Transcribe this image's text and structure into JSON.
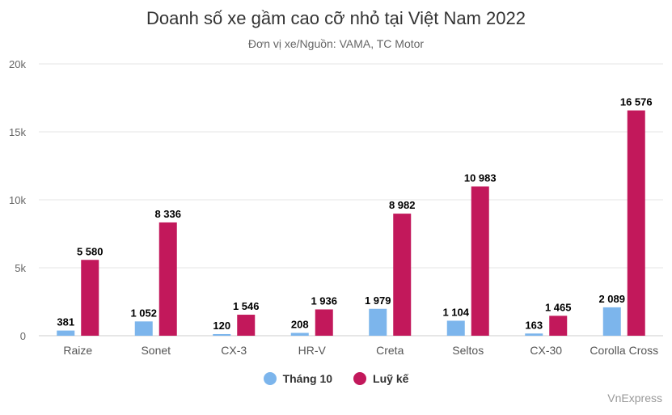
{
  "chart_data": {
    "type": "bar",
    "title": "Doanh số xe gầm cao cỡ nhỏ tại Việt Nam 2022",
    "subtitle": "Đơn vị xe/Nguồn: VAMA, TC Motor",
    "categories": [
      "Raize",
      "Sonet",
      "CX-3",
      "HR-V",
      "Creta",
      "Seltos",
      "CX-30",
      "Corolla Cross"
    ],
    "series": [
      {
        "name": "Tháng 10",
        "color": "#7cb5ec",
        "values": [
          381,
          1052,
          120,
          208,
          1979,
          1104,
          163,
          2089
        ],
        "labels": [
          "381",
          "1 052",
          "120",
          "208",
          "1 979",
          "1 104",
          "163",
          "2 089"
        ]
      },
      {
        "name": "Luỹ kế",
        "color": "#c2185b",
        "values": [
          5580,
          8336,
          1546,
          1936,
          8982,
          10983,
          1465,
          16576
        ],
        "labels": [
          "5 580",
          "8 336",
          "1 546",
          "1 936",
          "8 982",
          "10 983",
          "1 465",
          "16 576"
        ]
      }
    ],
    "ylim": [
      0,
      20000
    ],
    "yticks": [
      0,
      5000,
      10000,
      15000,
      20000
    ],
    "ytick_labels": [
      "0",
      "5k",
      "10k",
      "15k",
      "20k"
    ],
    "grid": true,
    "legend_position": "bottom-center"
  },
  "credit": "VnExpress"
}
